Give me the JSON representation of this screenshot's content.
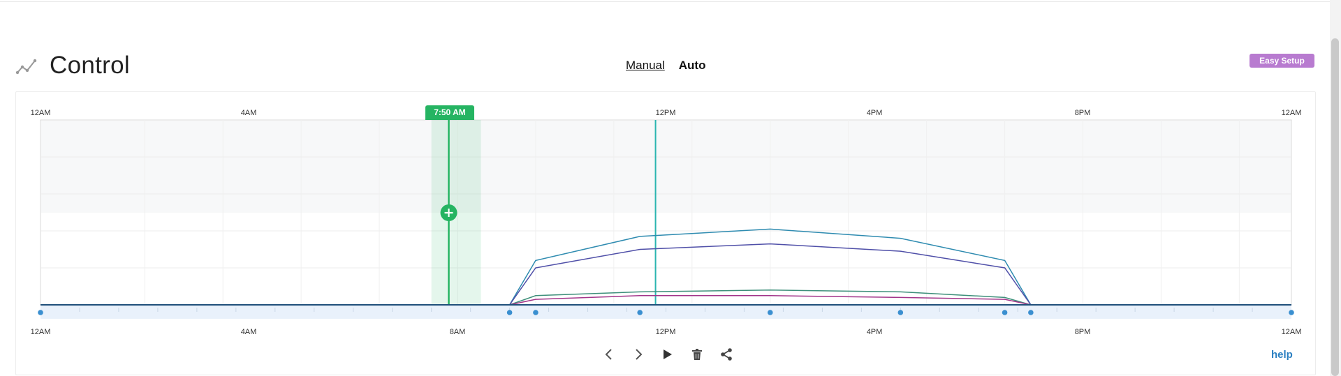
{
  "header": {
    "title": "Control",
    "icon": "line-chart-icon",
    "mode_tabs": {
      "manual": "Manual",
      "auto": "Auto"
    },
    "easy_setup_label": "Easy Setup"
  },
  "timeline": {
    "top_labels": [
      "12AM",
      "4AM",
      "12PM",
      "4PM",
      "8PM",
      "12AM"
    ],
    "bottom_labels": [
      "12AM",
      "4AM",
      "8AM",
      "12PM",
      "4PM",
      "8PM",
      "12AM"
    ],
    "cursor_time": "7:50 AM",
    "cursor_hour": 7.833,
    "current_time_hour": 11.8,
    "selection_start_hour": 7.5,
    "selection_end_hour": 8.45,
    "colors": {
      "accent": "#25b462",
      "current_line": "#2ab5b0",
      "handle_dot": "#3a8fd0"
    }
  },
  "chart_data": {
    "type": "line",
    "x_unit": "hour",
    "xlim": [
      0,
      24
    ],
    "ylim": [
      0,
      100
    ],
    "x": [
      0,
      9,
      9.5,
      11.5,
      14,
      16.5,
      18.5,
      19,
      24
    ],
    "series": [
      {
        "color": "#2e8bb0",
        "values": [
          0,
          0,
          24,
          37,
          41,
          36,
          24,
          0,
          0
        ]
      },
      {
        "color": "#4f4fa8",
        "values": [
          0,
          0,
          20,
          30,
          33,
          29,
          20,
          0,
          0
        ]
      },
      {
        "color": "#3d8f7a",
        "values": [
          0,
          0,
          5,
          7,
          8,
          7,
          4,
          0,
          0
        ]
      },
      {
        "color": "#a2358a",
        "values": [
          0,
          0,
          3,
          5,
          5,
          4,
          3,
          0,
          0
        ]
      }
    ],
    "handle_hours": [
      0,
      9,
      9.5,
      11.5,
      14,
      16.5,
      18.5,
      19,
      24
    ]
  },
  "controls": {
    "prev": "chevron-left-icon",
    "next": "chevron-right-icon",
    "play": "play-icon",
    "delete": "trash-icon",
    "share": "share-icon",
    "help_label": "help"
  }
}
